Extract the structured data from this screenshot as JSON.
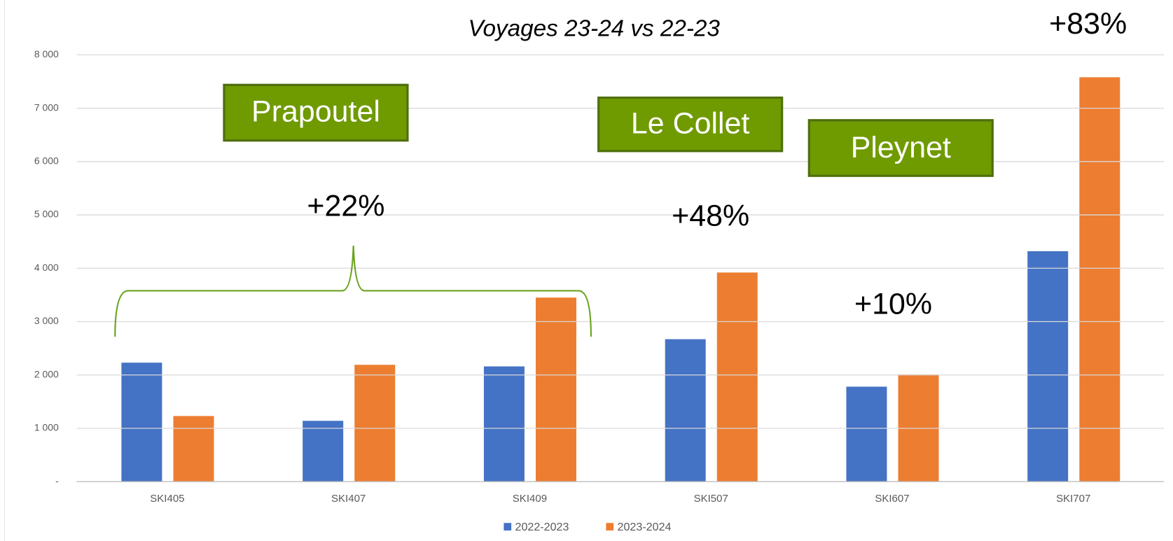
{
  "chart_data": {
    "type": "bar",
    "title": "Voyages 23-24 vs 22-23",
    "categories": [
      "SKI405",
      "SKI407",
      "SKI409",
      "SKI507",
      "SKI607",
      "SKI707"
    ],
    "series": [
      {
        "name": "2022-2023",
        "color": "#4472c4",
        "values": [
          2230,
          1140,
          2160,
          2670,
          1780,
          4320
        ]
      },
      {
        "name": "2023-2024",
        "color": "#ed7d31",
        "values": [
          1230,
          2190,
          3450,
          3920,
          2010,
          7580
        ]
      }
    ],
    "ylim": [
      0,
      8000
    ],
    "yticks": [
      {
        "value": 0,
        "label": "-"
      },
      {
        "value": 1000,
        "label": "1 000"
      },
      {
        "value": 2000,
        "label": "2 000"
      },
      {
        "value": 3000,
        "label": "3 000"
      },
      {
        "value": 4000,
        "label": "4 000"
      },
      {
        "value": 5000,
        "label": "5 000"
      },
      {
        "value": 6000,
        "label": "6 000"
      },
      {
        "value": 7000,
        "label": "7 000"
      },
      {
        "value": 8000,
        "label": "8 000"
      }
    ],
    "grid": true,
    "legend": "bottom",
    "annotations": [
      "Prapoutel",
      "Le Collet",
      "Pleynet",
      "+22%",
      "+48%",
      "+10%",
      "+83%"
    ]
  }
}
